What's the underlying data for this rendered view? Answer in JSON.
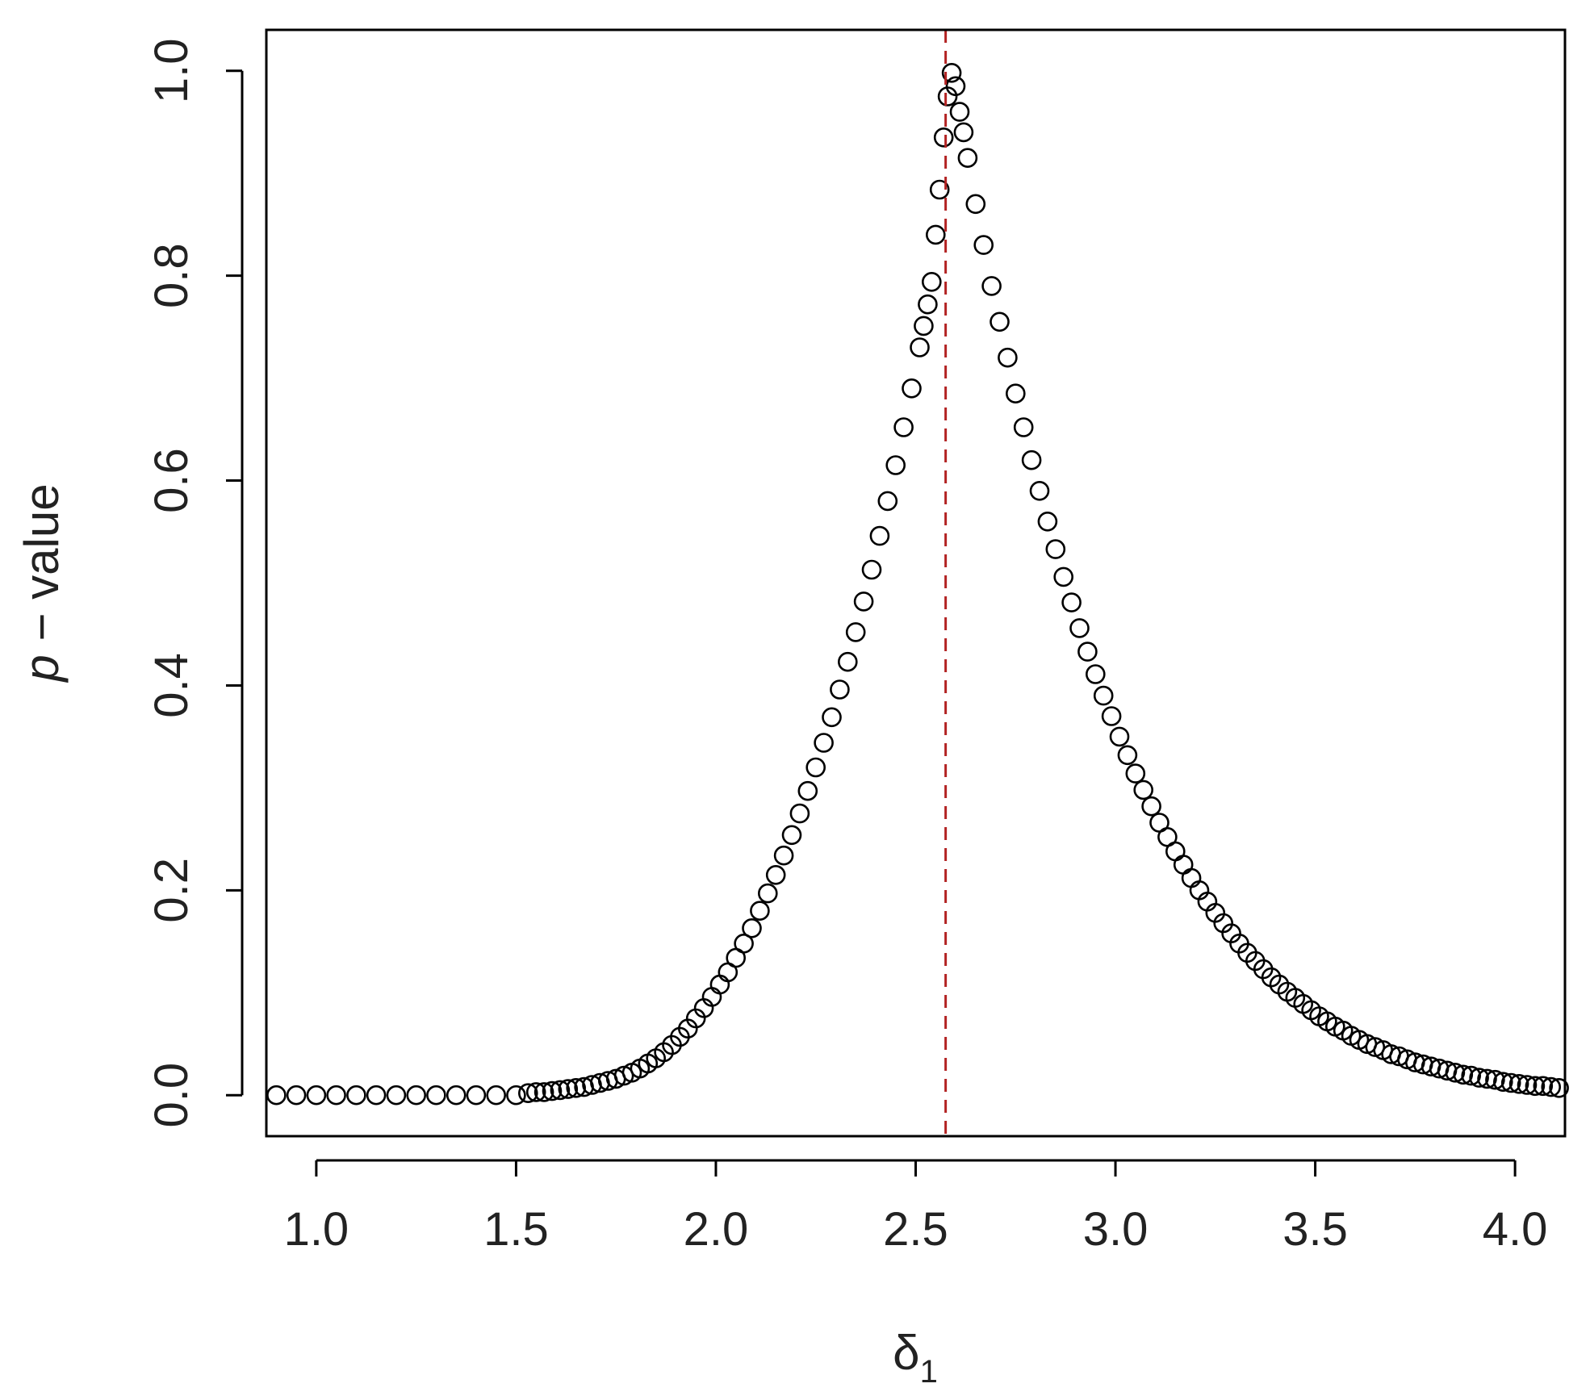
{
  "chart_data": {
    "type": "scatter",
    "title": "",
    "xlabel": "δ",
    "xlabel_subscript": "1",
    "ylabel_italic": "p",
    "ylabel_rest": " − value",
    "xlim": [
      0.875,
      4.125
    ],
    "ylim": [
      -0.04,
      1.04
    ],
    "x_ticks": [
      1.0,
      1.5,
      2.0,
      2.5,
      3.0,
      3.5,
      4.0
    ],
    "x_tick_labels": [
      "1.0",
      "1.5",
      "2.0",
      "2.5",
      "3.0",
      "3.5",
      "4.0"
    ],
    "y_ticks": [
      0.0,
      0.2,
      0.4,
      0.6,
      0.8,
      1.0
    ],
    "y_tick_labels": [
      "0.0",
      "0.2",
      "0.4",
      "0.6",
      "0.8",
      "1.0"
    ],
    "reference_line": {
      "x": 2.575,
      "style": "dashed",
      "color": "#b22222"
    },
    "marker": "open-circle",
    "marker_color": "#000000",
    "grid": false,
    "legend": "none",
    "series": [
      {
        "points": [
          [
            0.9,
            0.0
          ],
          [
            0.95,
            0.0
          ],
          [
            1.0,
            0.0
          ],
          [
            1.05,
            0.0
          ],
          [
            1.1,
            0.0
          ],
          [
            1.15,
            0.0
          ],
          [
            1.2,
            0.0
          ],
          [
            1.25,
            0.0
          ],
          [
            1.3,
            0.0
          ],
          [
            1.35,
            0.0
          ],
          [
            1.4,
            0.0
          ],
          [
            1.45,
            0.0
          ],
          [
            1.5,
            0.0
          ],
          [
            1.53,
            0.002
          ],
          [
            1.55,
            0.003
          ],
          [
            1.57,
            0.003
          ],
          [
            1.59,
            0.004
          ],
          [
            1.61,
            0.005
          ],
          [
            1.63,
            0.006
          ],
          [
            1.65,
            0.007
          ],
          [
            1.67,
            0.008
          ],
          [
            1.69,
            0.01
          ],
          [
            1.71,
            0.012
          ],
          [
            1.73,
            0.014
          ],
          [
            1.75,
            0.016
          ],
          [
            1.77,
            0.019
          ],
          [
            1.79,
            0.022
          ],
          [
            1.81,
            0.026
          ],
          [
            1.83,
            0.031
          ],
          [
            1.85,
            0.036
          ],
          [
            1.87,
            0.042
          ],
          [
            1.89,
            0.049
          ],
          [
            1.91,
            0.057
          ],
          [
            1.93,
            0.065
          ],
          [
            1.95,
            0.075
          ],
          [
            1.97,
            0.085
          ],
          [
            1.99,
            0.096
          ],
          [
            2.01,
            0.108
          ],
          [
            2.03,
            0.12
          ],
          [
            2.05,
            0.134
          ],
          [
            2.07,
            0.148
          ],
          [
            2.09,
            0.163
          ],
          [
            2.11,
            0.18
          ],
          [
            2.13,
            0.197
          ],
          [
            2.15,
            0.215
          ],
          [
            2.17,
            0.234
          ],
          [
            2.19,
            0.254
          ],
          [
            2.21,
            0.275
          ],
          [
            2.23,
            0.297
          ],
          [
            2.25,
            0.32
          ],
          [
            2.27,
            0.344
          ],
          [
            2.29,
            0.369
          ],
          [
            2.31,
            0.396
          ],
          [
            2.33,
            0.423
          ],
          [
            2.35,
            0.452
          ],
          [
            2.37,
            0.482
          ],
          [
            2.39,
            0.513
          ],
          [
            2.41,
            0.546
          ],
          [
            2.43,
            0.58
          ],
          [
            2.45,
            0.615
          ],
          [
            2.47,
            0.652
          ],
          [
            2.49,
            0.69
          ],
          [
            2.51,
            0.73
          ],
          [
            2.52,
            0.751
          ],
          [
            2.53,
            0.772
          ],
          [
            2.54,
            0.794
          ],
          [
            2.55,
            0.84
          ],
          [
            2.56,
            0.884
          ],
          [
            2.57,
            0.935
          ],
          [
            2.58,
            0.975
          ],
          [
            2.59,
            0.998
          ],
          [
            2.6,
            0.985
          ],
          [
            2.61,
            0.96
          ],
          [
            2.62,
            0.94
          ],
          [
            2.63,
            0.915
          ],
          [
            2.65,
            0.87
          ],
          [
            2.67,
            0.83
          ],
          [
            2.69,
            0.79
          ],
          [
            2.71,
            0.755
          ],
          [
            2.73,
            0.72
          ],
          [
            2.75,
            0.685
          ],
          [
            2.77,
            0.652
          ],
          [
            2.79,
            0.62
          ],
          [
            2.81,
            0.59
          ],
          [
            2.83,
            0.56
          ],
          [
            2.85,
            0.533
          ],
          [
            2.87,
            0.506
          ],
          [
            2.89,
            0.481
          ],
          [
            2.91,
            0.456
          ],
          [
            2.93,
            0.433
          ],
          [
            2.95,
            0.411
          ],
          [
            2.97,
            0.39
          ],
          [
            2.99,
            0.37
          ],
          [
            3.01,
            0.35
          ],
          [
            3.03,
            0.332
          ],
          [
            3.05,
            0.314
          ],
          [
            3.07,
            0.298
          ],
          [
            3.09,
            0.282
          ],
          [
            3.11,
            0.266
          ],
          [
            3.13,
            0.252
          ],
          [
            3.15,
            0.238
          ],
          [
            3.17,
            0.225
          ],
          [
            3.19,
            0.212
          ],
          [
            3.21,
            0.2
          ],
          [
            3.23,
            0.189
          ],
          [
            3.25,
            0.178
          ],
          [
            3.27,
            0.168
          ],
          [
            3.29,
            0.158
          ],
          [
            3.31,
            0.148
          ],
          [
            3.33,
            0.139
          ],
          [
            3.35,
            0.131
          ],
          [
            3.37,
            0.123
          ],
          [
            3.39,
            0.115
          ],
          [
            3.41,
            0.108
          ],
          [
            3.43,
            0.101
          ],
          [
            3.45,
            0.095
          ],
          [
            3.47,
            0.089
          ],
          [
            3.49,
            0.083
          ],
          [
            3.51,
            0.077
          ],
          [
            3.53,
            0.072
          ],
          [
            3.55,
            0.067
          ],
          [
            3.57,
            0.063
          ],
          [
            3.59,
            0.058
          ],
          [
            3.61,
            0.054
          ],
          [
            3.63,
            0.05
          ],
          [
            3.65,
            0.047
          ],
          [
            3.67,
            0.044
          ],
          [
            3.69,
            0.04
          ],
          [
            3.71,
            0.038
          ],
          [
            3.73,
            0.035
          ],
          [
            3.75,
            0.032
          ],
          [
            3.77,
            0.03
          ],
          [
            3.79,
            0.028
          ],
          [
            3.81,
            0.026
          ],
          [
            3.83,
            0.024
          ],
          [
            3.85,
            0.022
          ],
          [
            3.87,
            0.02
          ],
          [
            3.89,
            0.019
          ],
          [
            3.91,
            0.017
          ],
          [
            3.93,
            0.016
          ],
          [
            3.95,
            0.015
          ],
          [
            3.97,
            0.013
          ],
          [
            3.99,
            0.012
          ],
          [
            4.01,
            0.011
          ],
          [
            4.03,
            0.01
          ],
          [
            4.05,
            0.009
          ],
          [
            4.07,
            0.009
          ],
          [
            4.09,
            0.008
          ],
          [
            4.11,
            0.007
          ]
        ]
      }
    ]
  }
}
